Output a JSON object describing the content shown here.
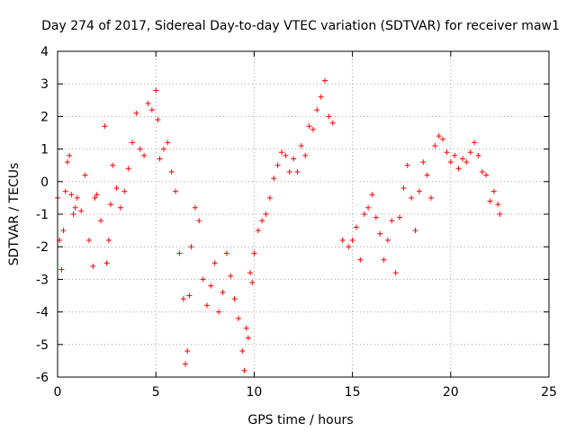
{
  "chart_data": {
    "type": "scatter",
    "title": "Day 274 of 2017, Sidereal Day-to-day VTEC variation (SDTVAR) for receiver maw1",
    "xlabel": "GPS time / hours",
    "ylabel": "SDTVAR / TECUs",
    "xlim": [
      0,
      25
    ],
    "ylim": [
      -6,
      4
    ],
    "xticks": [
      0,
      5,
      10,
      15,
      20,
      25
    ],
    "yticks": [
      -6,
      -5,
      -4,
      -3,
      -2,
      -1,
      0,
      1,
      2,
      3,
      4
    ],
    "xtick_labels": [
      "0",
      "5",
      "10",
      "15",
      "20",
      "25"
    ],
    "ytick_labels": [
      "-6",
      "-5",
      "-4",
      "-3",
      "-2",
      "-1",
      "0",
      "1",
      "2",
      "3",
      "4"
    ],
    "grid": true,
    "marker": "+",
    "color": "#ff0000",
    "series": [
      {
        "name": "SDTVAR",
        "x": [
          0.0,
          0.1,
          0.2,
          0.3,
          0.4,
          0.5,
          0.6,
          0.7,
          0.8,
          0.9,
          1.0,
          1.2,
          1.4,
          1.6,
          1.8,
          1.9,
          2.0,
          2.2,
          2.4,
          2.5,
          2.6,
          2.7,
          2.8,
          3.0,
          3.2,
          3.4,
          3.6,
          3.8,
          4.0,
          4.2,
          4.4,
          4.6,
          4.8,
          5.0,
          5.1,
          5.2,
          5.4,
          5.6,
          5.8,
          6.0,
          6.2,
          6.4,
          6.5,
          6.6,
          6.7,
          6.8,
          7.0,
          7.2,
          7.4,
          7.6,
          7.8,
          8.0,
          8.2,
          8.4,
          8.6,
          8.8,
          9.0,
          9.2,
          9.4,
          9.5,
          9.6,
          9.7,
          9.8,
          9.9,
          10.0,
          10.2,
          10.4,
          10.6,
          10.8,
          11.0,
          11.2,
          11.4,
          11.6,
          11.8,
          12.0,
          12.2,
          12.4,
          12.6,
          12.8,
          13.0,
          13.2,
          13.4,
          13.6,
          13.8,
          14.0,
          14.5,
          14.8,
          15.0,
          15.2,
          15.4,
          15.6,
          15.8,
          16.0,
          16.2,
          16.4,
          16.6,
          16.8,
          17.0,
          17.2,
          17.4,
          17.6,
          17.8,
          18.0,
          18.2,
          18.4,
          18.6,
          18.8,
          19.0,
          19.2,
          19.4,
          19.6,
          19.8,
          20.0,
          20.2,
          20.4,
          20.6,
          20.8,
          21.0,
          21.2,
          21.4,
          21.6,
          21.8,
          22.0,
          22.2,
          22.4,
          22.5
        ],
        "y": [
          -0.5,
          -1.8,
          -2.7,
          -1.5,
          -0.3,
          0.6,
          0.8,
          -0.4,
          -1.0,
          -0.8,
          -0.5,
          -0.9,
          0.2,
          -1.8,
          -2.6,
          -0.5,
          -0.4,
          -1.2,
          1.7,
          -2.5,
          -1.8,
          -0.7,
          0.5,
          -0.2,
          -0.8,
          -0.3,
          0.4,
          1.2,
          2.1,
          1.0,
          0.8,
          2.4,
          2.2,
          2.8,
          1.9,
          0.7,
          1.0,
          1.2,
          0.3,
          -0.3,
          -2.2,
          -3.6,
          -5.6,
          -5.2,
          -3.5,
          -2.0,
          -0.8,
          -1.2,
          -3.0,
          -3.8,
          -3.2,
          -2.5,
          -4.0,
          -3.4,
          -2.2,
          -2.9,
          -3.6,
          -4.2,
          -5.2,
          -5.8,
          -4.5,
          -4.8,
          -2.8,
          -3.1,
          -2.2,
          -1.5,
          -1.2,
          -1.0,
          -0.5,
          0.1,
          0.5,
          0.9,
          0.8,
          0.3,
          0.7,
          0.3,
          1.1,
          0.8,
          1.7,
          1.6,
          2.2,
          2.6,
          3.1,
          2.0,
          1.8,
          -1.8,
          -2.0,
          -1.8,
          -1.4,
          -2.4,
          -1.0,
          -0.8,
          -0.4,
          -1.1,
          -1.6,
          -2.4,
          -1.8,
          -1.2,
          -2.8,
          -1.1,
          -0.2,
          0.5,
          -0.5,
          -1.5,
          -0.3,
          0.6,
          0.2,
          -0.5,
          1.1,
          1.4,
          1.3,
          0.9,
          0.6,
          0.8,
          0.4,
          0.7,
          0.6,
          0.9,
          1.2,
          0.8,
          0.3,
          0.2,
          -0.6,
          -0.3,
          -0.7,
          -1.0
        ]
      }
    ]
  }
}
